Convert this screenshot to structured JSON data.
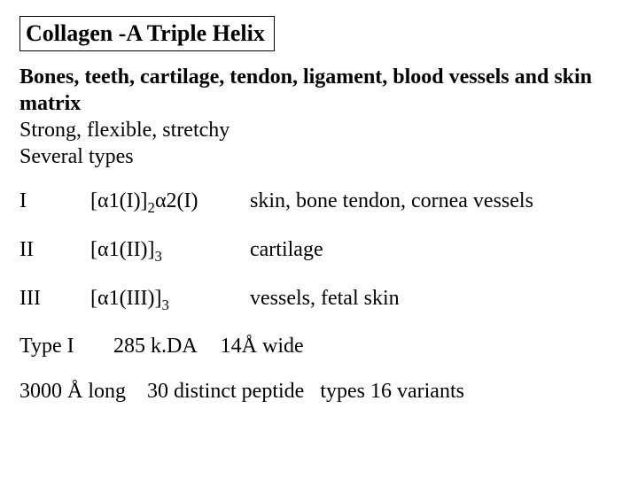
{
  "title": "Collagen -A Triple Helix",
  "intro": {
    "bold_line": "Bones, teeth, cartilage, tendon, ligament, blood vessels and skin matrix",
    "line2": "Strong, flexible, stretchy",
    "line3": "Several types"
  },
  "rows": [
    {
      "type": "I",
      "formula_parts": {
        "p1": "[",
        "a1": "α",
        "p2": "1(I)]",
        "s1": "2",
        "a2": "α",
        "p3": "2(I)"
      },
      "tissue": "skin, bone tendon, cornea vessels"
    },
    {
      "type": "II",
      "formula_parts": {
        "p1": "[",
        "a1": "α",
        "p2": "1(II)]",
        "s1": "3"
      },
      "tissue": "cartilage"
    },
    {
      "type": "III",
      "formula_parts": {
        "p1": "[",
        "a1": "α",
        "p2": "1(III)]",
        "s1": "3"
      },
      "tissue": "vessels, fetal skin"
    }
  ],
  "typeI": {
    "label": "Type I",
    "mass": "285 k.DA",
    "width": "14Å wide"
  },
  "last": {
    "length": "3000 Å long",
    "peptides": "30 distinct peptide",
    "variants": "types 16 variants"
  },
  "style": {
    "background": "#ffffff",
    "text_color": "#000000",
    "font_family": "Times New Roman",
    "title_fontsize": 26,
    "body_fontsize": 24
  }
}
